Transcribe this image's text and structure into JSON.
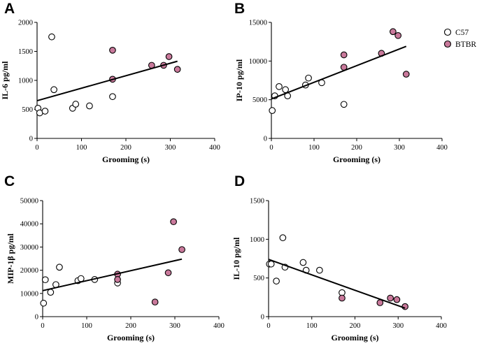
{
  "legend": {
    "entries": [
      {
        "label": "C57",
        "color": "#ffffff"
      },
      {
        "label": "BTBR",
        "color": "#c9799b"
      }
    ]
  },
  "colors": {
    "c57_fill": "#ffffff",
    "btbr_fill": "#c9799b",
    "stroke": "#000000"
  },
  "chart_data": [
    {
      "panel": "A",
      "type": "scatter",
      "xlabel": "Grooming (s)",
      "ylabel": "IL-6 pg/ml",
      "xlim": [
        0,
        400
      ],
      "ylim": [
        0,
        2000
      ],
      "xticks": [
        0,
        100,
        200,
        300,
        400
      ],
      "yticks": [
        0,
        500,
        1000,
        1500,
        2000
      ],
      "series": [
        {
          "name": "C57",
          "points": [
            [
              2,
              520
            ],
            [
              6,
              440
            ],
            [
              18,
              470
            ],
            [
              33,
              1750
            ],
            [
              38,
              840
            ],
            [
              80,
              520
            ],
            [
              87,
              590
            ],
            [
              118,
              560
            ],
            [
              170,
              720
            ]
          ]
        },
        {
          "name": "BTBR",
          "points": [
            [
              170,
              1520
            ],
            [
              170,
              1020
            ],
            [
              258,
              1260
            ],
            [
              285,
              1260
            ],
            [
              297,
              1410
            ],
            [
              316,
              1190
            ]
          ]
        }
      ],
      "fit": {
        "x": [
          0,
          316
        ],
        "y": [
          650,
          1330
        ]
      }
    },
    {
      "panel": "B",
      "type": "scatter",
      "xlabel": "Grooming (s)",
      "ylabel": "IP-10 pg/ml",
      "xlim": [
        0,
        400
      ],
      "ylim": [
        0,
        15000
      ],
      "xticks": [
        0,
        100,
        200,
        300,
        400
      ],
      "yticks": [
        0,
        5000,
        10000,
        15000
      ],
      "series": [
        {
          "name": "C57",
          "points": [
            [
              2,
              3600
            ],
            [
              8,
              5500
            ],
            [
              18,
              6700
            ],
            [
              33,
              6300
            ],
            [
              38,
              5500
            ],
            [
              80,
              6900
            ],
            [
              87,
              7800
            ],
            [
              118,
              7200
            ],
            [
              170,
              4400
            ]
          ]
        },
        {
          "name": "BTBR",
          "points": [
            [
              170,
              10800
            ],
            [
              170,
              9200
            ],
            [
              258,
              11000
            ],
            [
              285,
              13800
            ],
            [
              297,
              13300
            ],
            [
              316,
              8300
            ]
          ]
        }
      ],
      "fit": {
        "x": [
          0,
          316
        ],
        "y": [
          5100,
          11900
        ]
      }
    },
    {
      "panel": "C",
      "type": "scatter",
      "xlabel": "Grooming (s)",
      "ylabel": "MIP-1β pg/ml",
      "xlim": [
        0,
        400
      ],
      "ylim": [
        0,
        50000
      ],
      "xticks": [
        0,
        100,
        200,
        300,
        400
      ],
      "yticks": [
        0,
        10000,
        20000,
        30000,
        40000,
        50000
      ],
      "series": [
        {
          "name": "C57",
          "points": [
            [
              2,
              5800
            ],
            [
              6,
              15900
            ],
            [
              18,
              10500
            ],
            [
              30,
              13800
            ],
            [
              38,
              21300
            ],
            [
              80,
              15500
            ],
            [
              87,
              16400
            ],
            [
              118,
              16000
            ],
            [
              170,
              14500
            ]
          ]
        },
        {
          "name": "BTBR",
          "points": [
            [
              170,
              18300
            ],
            [
              170,
              16000
            ],
            [
              255,
              6300
            ],
            [
              285,
              18900
            ],
            [
              297,
              40900
            ],
            [
              316,
              28900
            ]
          ]
        }
      ],
      "fit": {
        "x": [
          0,
          316
        ],
        "y": [
          11200,
          24800
        ]
      }
    },
    {
      "panel": "D",
      "type": "scatter",
      "xlabel": "Grooming (s)",
      "ylabel": "IL-10 pg/ml",
      "xlim": [
        0,
        400
      ],
      "ylim": [
        0,
        1500
      ],
      "xticks": [
        0,
        100,
        200,
        300,
        400
      ],
      "yticks": [
        0,
        500,
        1000,
        1500
      ],
      "series": [
        {
          "name": "C57",
          "points": [
            [
              2,
              680
            ],
            [
              6,
              680
            ],
            [
              18,
              460
            ],
            [
              33,
              1020
            ],
            [
              38,
              640
            ],
            [
              80,
              700
            ],
            [
              87,
              600
            ],
            [
              118,
              600
            ],
            [
              170,
              310
            ]
          ]
        },
        {
          "name": "BTBR",
          "points": [
            [
              170,
              240
            ],
            [
              258,
              180
            ],
            [
              282,
              240
            ],
            [
              297,
              220
            ],
            [
              316,
              130
            ]
          ]
        }
      ],
      "fit": {
        "x": [
          0,
          316
        ],
        "y": [
          740,
          110
        ]
      }
    }
  ]
}
